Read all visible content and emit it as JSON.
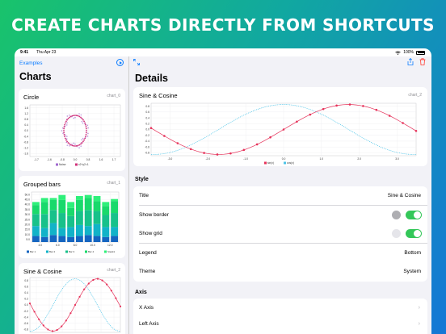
{
  "headline": "CREATE CHARTS DIRECTLY  FROM SHORTCUTS",
  "status": {
    "time": "9:41",
    "date": "Thu Apr 23",
    "battery": "100%"
  },
  "sidebar": {
    "back_label": "Examples",
    "title": "Charts",
    "cards": [
      {
        "title": "Circle",
        "id": "chart_0"
      },
      {
        "title": "Grouped bars",
        "id": "chart_1"
      },
      {
        "title": "Sine & Cosine",
        "id": "chart_2"
      }
    ]
  },
  "detail": {
    "title": "Details",
    "preview": {
      "title": "Sine & Cosine",
      "id": "chart_2"
    },
    "style_header": "Style",
    "style_rows": [
      {
        "label": "Title",
        "value": "Sine & Cosine"
      },
      {
        "label": "Show border",
        "value": ""
      },
      {
        "label": "Show grid",
        "value": ""
      },
      {
        "label": "Legend",
        "value": "Bottom"
      },
      {
        "label": "Theme",
        "value": "System"
      }
    ],
    "axis_header": "Axis",
    "axis_rows": [
      {
        "label": "X Axis"
      },
      {
        "label": "Left Axis"
      }
    ]
  },
  "colors": {
    "accent": "#0a7cff",
    "sine": "#e6325a",
    "cosine": "#4cc4e8",
    "toggle_on": "#34c759",
    "trash": "#ff3b30"
  },
  "chart_data": [
    {
      "type": "scatter",
      "title": "Circle",
      "x_ticks": [
        "-1.7",
        "-1.6",
        "-0.8",
        "0.0",
        "0.8",
        "1.6",
        "1.7"
      ],
      "y_ticks": [
        "1.6",
        "1.2",
        "0.8",
        "0.4",
        "0.0",
        "-0.4",
        "-0.8",
        "-1.2",
        "-1.6"
      ],
      "series": [
        {
          "name": "Noise",
          "color": "#a06ad0"
        },
        {
          "name": "x2+y2=1",
          "color": "#d0307a"
        }
      ]
    },
    {
      "type": "bar",
      "title": "Grouped bars",
      "x_ticks": [
        "4.0",
        "6.0",
        "8.0",
        "10.0",
        "12.0"
      ],
      "y_ticks": [
        "50.0",
        "45.0",
        "40.0",
        "35.0",
        "30.0",
        "25.0",
        "20.0",
        "15.0",
        "10.0",
        "5.0"
      ],
      "ylim": [
        0,
        50
      ],
      "categories": [
        "4",
        "5",
        "6",
        "7",
        "8",
        "9",
        "10",
        "11",
        "12",
        "13"
      ],
      "series": [
        {
          "name": "Bar 1",
          "color": "#1565c0",
          "values": [
            6,
            5,
            7,
            6,
            5,
            6,
            7,
            6,
            5,
            6
          ]
        },
        {
          "name": "Bar 2",
          "color": "#12b3c8",
          "values": [
            10,
            9,
            12,
            8,
            10,
            11,
            9,
            12,
            10,
            9
          ]
        },
        {
          "name": "Bar 3",
          "color": "#17c18a",
          "values": [
            12,
            14,
            13,
            15,
            11,
            14,
            16,
            13,
            12,
            14
          ]
        },
        {
          "name": "Bar 4",
          "color": "#19d96b",
          "values": [
            9,
            12,
            10,
            13,
            8,
            11,
            12,
            10,
            9,
            12
          ]
        },
        {
          "name": "Stack1",
          "color": "#2ef07a",
          "values": [
            3,
            4,
            2,
            5,
            6,
            4,
            3,
            5,
            4,
            2
          ]
        }
      ]
    },
    {
      "type": "line",
      "title": "Sine & Cosine",
      "x_ticks": [
        "-3.0",
        "-2.0",
        "-1.0",
        "0.0",
        "1.0",
        "2.0",
        "3.0"
      ],
      "y_ticks": [
        "0.8",
        "0.6",
        "0.4",
        "0.2",
        "0.0",
        "-0.2",
        "-0.4",
        "-0.6",
        "-0.8"
      ],
      "xlim": [
        -3.2,
        3.2
      ],
      "ylim": [
        -1.05,
        1.05
      ],
      "series": [
        {
          "name": "sin(x)",
          "color": "#e6325a",
          "markers": true
        },
        {
          "name": "cos(x)",
          "color": "#4cc4e8",
          "markers": false
        }
      ]
    }
  ]
}
